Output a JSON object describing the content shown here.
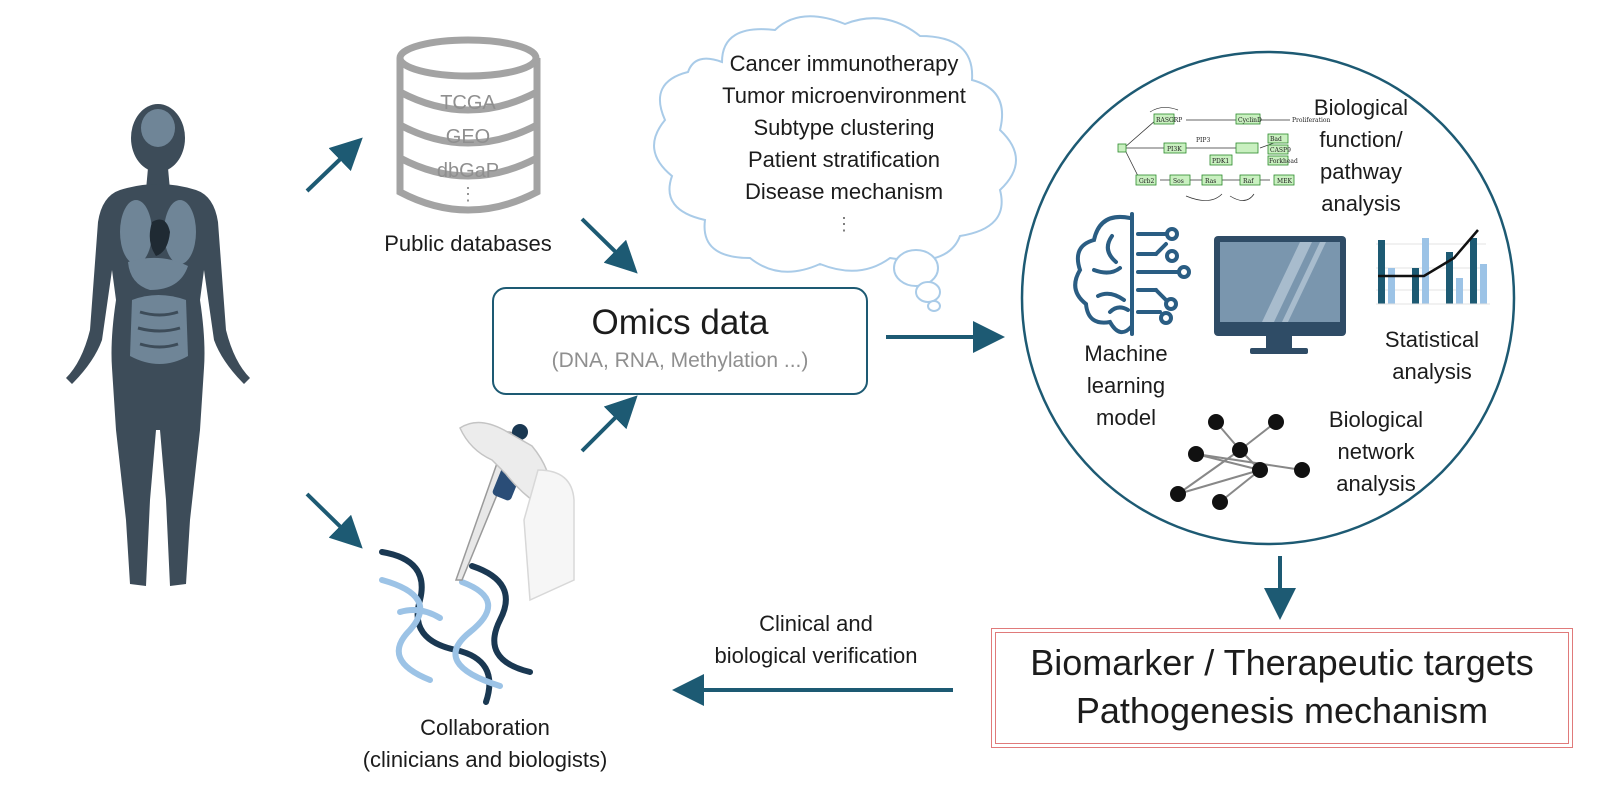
{
  "colors": {
    "arrow": "#1d5a73",
    "body_dark": "#3d4c59",
    "organ_light": "#6f8597",
    "accent_light": "#9cc3e6",
    "accent_dark": "#1a3852",
    "output_border": "#e07a7a",
    "cloud_border": "#a9cbe8"
  },
  "databases": {
    "items": [
      "TCGA",
      "GEO",
      "dbGaP"
    ],
    "more": "⋮",
    "caption": "Public databases"
  },
  "cloud": {
    "lines": [
      "Cancer immunotherapy",
      "Tumor microenvironment",
      "Subtype clustering",
      "Patient stratification",
      "Disease mechanism"
    ],
    "more": "⋮"
  },
  "omics": {
    "title": "Omics data",
    "subtitle": "(DNA, RNA, Methylation ...)"
  },
  "analysis": {
    "pathway": [
      "Biological",
      "function/",
      "pathway",
      "analysis"
    ],
    "ml": [
      "Machine",
      "learning",
      "model"
    ],
    "stats": [
      "Statistical",
      "analysis"
    ],
    "network": [
      "Biological",
      "network",
      "analysis"
    ],
    "pathway_nodes": [
      "RASGRP",
      "PI3K",
      "PDK1",
      "Grb2",
      "Sos",
      "Ras",
      "Raf",
      "MEK",
      "Bad",
      "CASP9",
      "Forkhead",
      "CyclinD",
      "Proliferation",
      "PIP3"
    ]
  },
  "output": {
    "line1": "Biomarker / Therapeutic targets",
    "line2": "Pathogenesis mechanism"
  },
  "verification": [
    "Clinical and",
    "biological verification"
  ],
  "collaboration": [
    "Collaboration",
    "(clinicians and biologists)"
  ]
}
